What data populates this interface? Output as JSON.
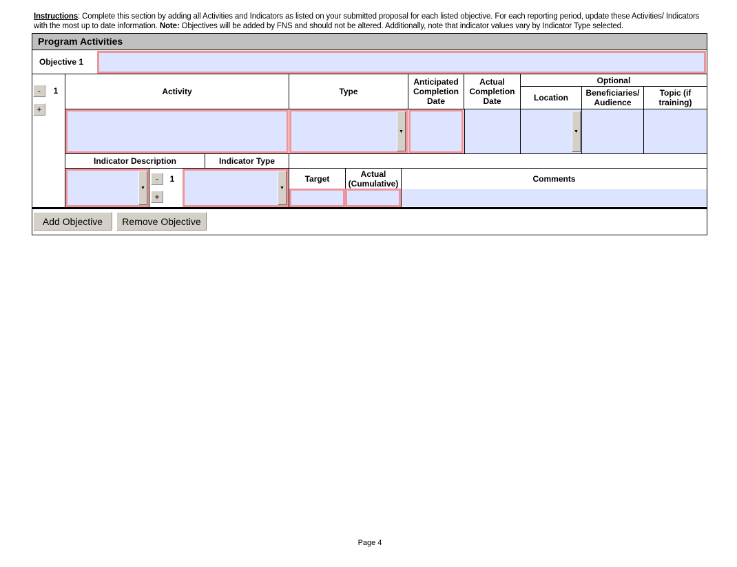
{
  "instructions": {
    "label": "Instructions",
    "text1": ": Complete this section by adding all Activities and Indicators as listed on your submitted proposal for each listed objective. For each reporting period, update these Activities/ Indicators with the most up to date information. ",
    "note_label": "Note:",
    "text2": " Objectives will be added by FNS and should not be altered. Additionally, note that indicator values vary by Indicator Type selected."
  },
  "section_title": "Program Activities",
  "objective": {
    "label": "Objective 1",
    "value": ""
  },
  "activity": {
    "number": "1",
    "minus": "-",
    "plus": "+",
    "headers": {
      "activity": "Activity",
      "type": "Type",
      "anticipated": "Anticipated Completion Date",
      "actual": "Actual Completion Date",
      "optional": "Optional",
      "location": "Location",
      "beneficiaries": "Beneficiaries/ Audience",
      "topic": "Topic (if training)"
    },
    "values": {
      "activity": "",
      "type": "",
      "anticipated": "",
      "actual": "",
      "location": "",
      "beneficiaries": "",
      "topic": ""
    }
  },
  "indicator": {
    "number": "1",
    "minus": "-",
    "plus": "+",
    "headers": {
      "description": "Indicator Description",
      "type": "Indicator Type",
      "target": "Target",
      "actual": "Actual (Cumulative)",
      "comments": "Comments"
    },
    "values": {
      "description": "",
      "type": "",
      "target": "",
      "actual": "",
      "comments": ""
    }
  },
  "buttons": {
    "add_objective": "Add Objective",
    "remove_objective": "Remove Objective"
  },
  "footer": {
    "page": "Page 4"
  },
  "colors": {
    "field": "#dde4ff",
    "required_border": "#f0949a",
    "header": "#c0c0c0"
  }
}
